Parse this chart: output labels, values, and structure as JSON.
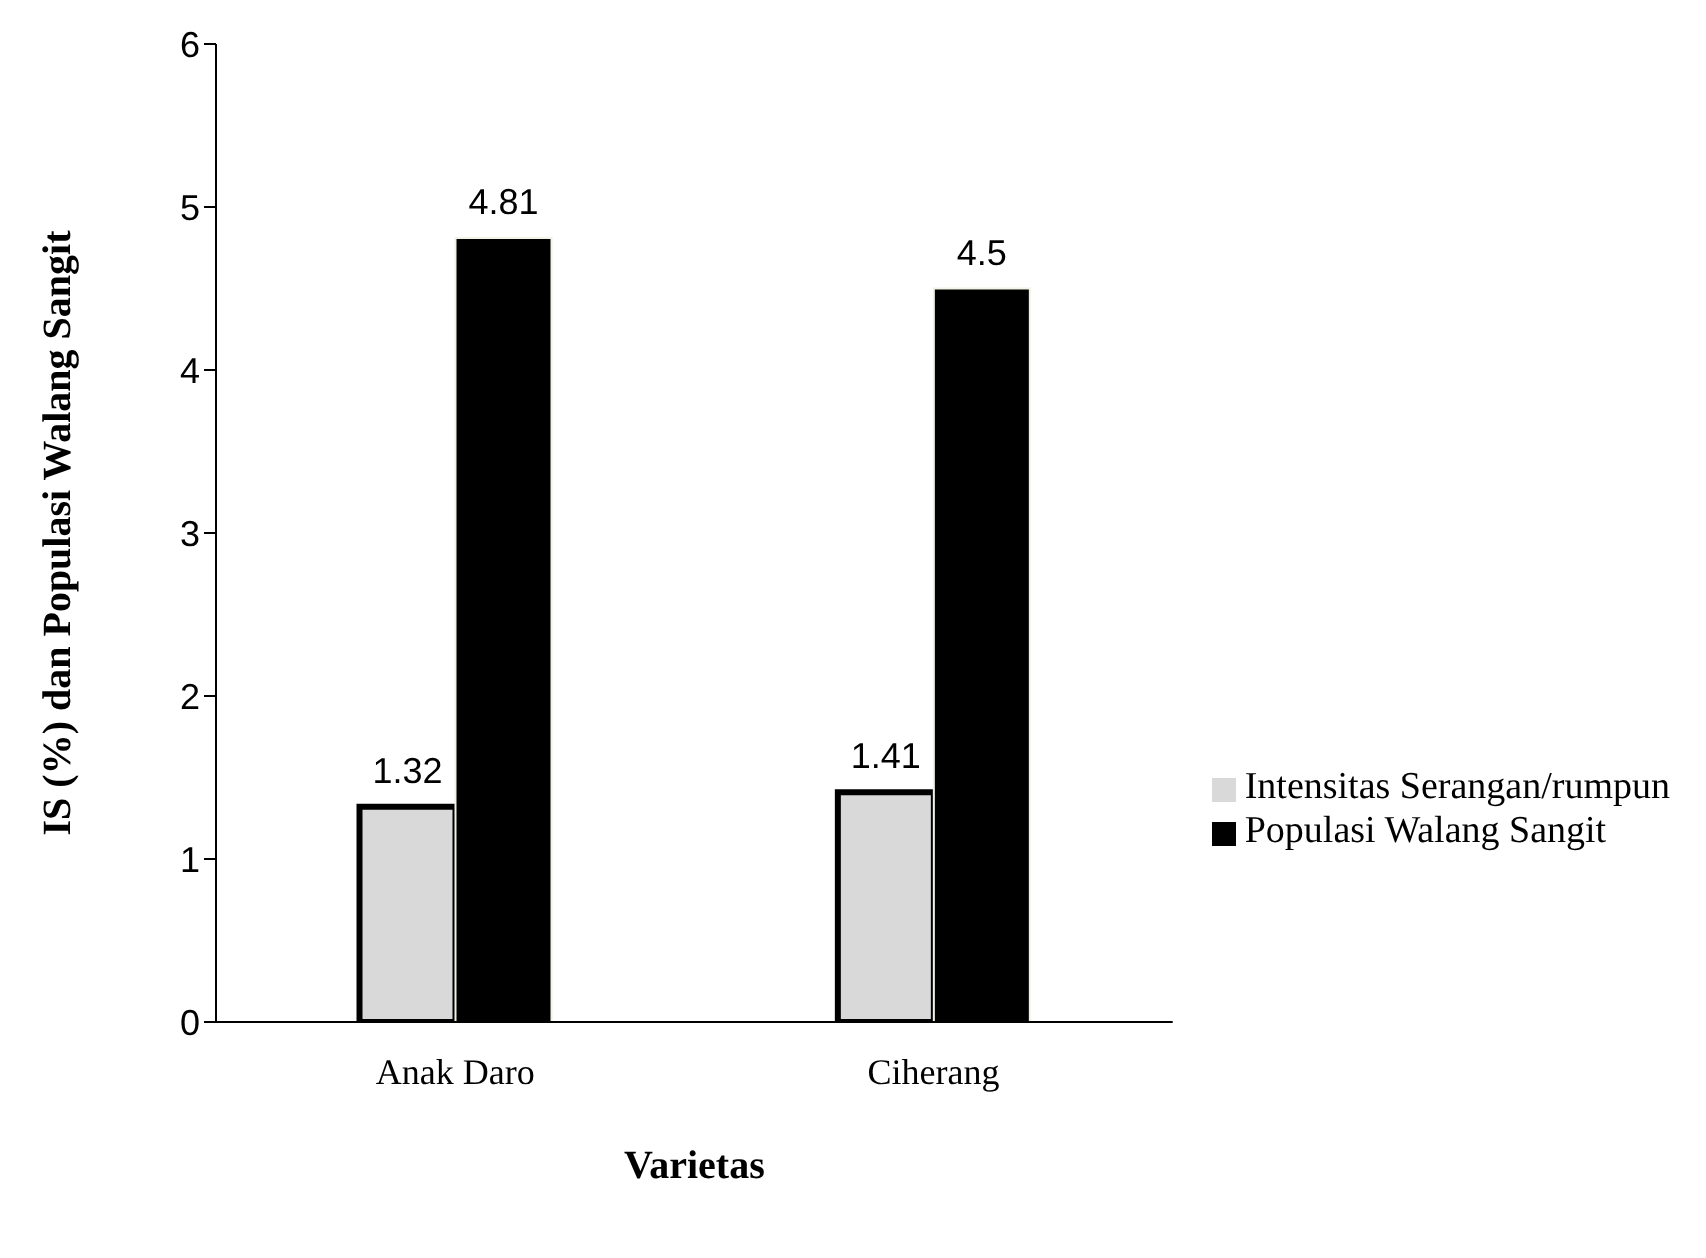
{
  "chart_data": {
    "type": "bar",
    "xlabel": "Varietas",
    "ylabel": "IS (%) dan Populasi Walang Sangit",
    "categories": [
      "Anak Daro",
      "Ciherang"
    ],
    "series": [
      {
        "name": "Intensitas Serangan/rumpun",
        "color": "#d9d9d9",
        "values": [
          1.32,
          1.41
        ]
      },
      {
        "name": "Populasi Walang Sangit",
        "color": "#000000",
        "values": [
          4.81,
          4.5
        ]
      }
    ],
    "ylim": [
      0,
      6
    ],
    "yticks": [
      0,
      1,
      2,
      3,
      4,
      5,
      6
    ],
    "grid": false,
    "legend": "right",
    "data_labels": true
  }
}
